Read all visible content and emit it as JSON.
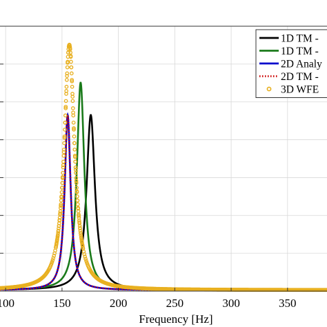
{
  "chart_data": {
    "type": "line",
    "title": "",
    "xlabel": "Frequency [Hz]",
    "ylabel": "",
    "xlim": [
      95,
      385
    ],
    "ylim": [
      0,
      1
    ],
    "x_ticks": [
      100,
      150,
      200,
      250,
      300,
      350
    ],
    "grid": true,
    "legend_position": "top-right",
    "series": [
      {
        "name": "1D TM -",
        "color": "#000000",
        "style": "solid",
        "peak_x": 175.5,
        "peak_y": 0.665,
        "width": 4.5
      },
      {
        "name": "1D TM -",
        "color": "#1a7a1a",
        "style": "solid",
        "peak_x": 166.5,
        "peak_y": 0.787,
        "width": 4.0
      },
      {
        "name": "2D Analy",
        "color": "#0000cc",
        "style": "solid",
        "peak_x": 155.0,
        "peak_y": 0.665,
        "width": 3.2
      },
      {
        "name": "2D TM -",
        "color": "#cc0000",
        "style": "dotted",
        "peak_x": 155.0,
        "peak_y": 0.665,
        "width": 3.2
      },
      {
        "name": "3D WFE",
        "color": "#e8b020",
        "style": "markers",
        "peak_x": 156.5,
        "peak_y": 0.93,
        "width": 5.5
      }
    ]
  }
}
